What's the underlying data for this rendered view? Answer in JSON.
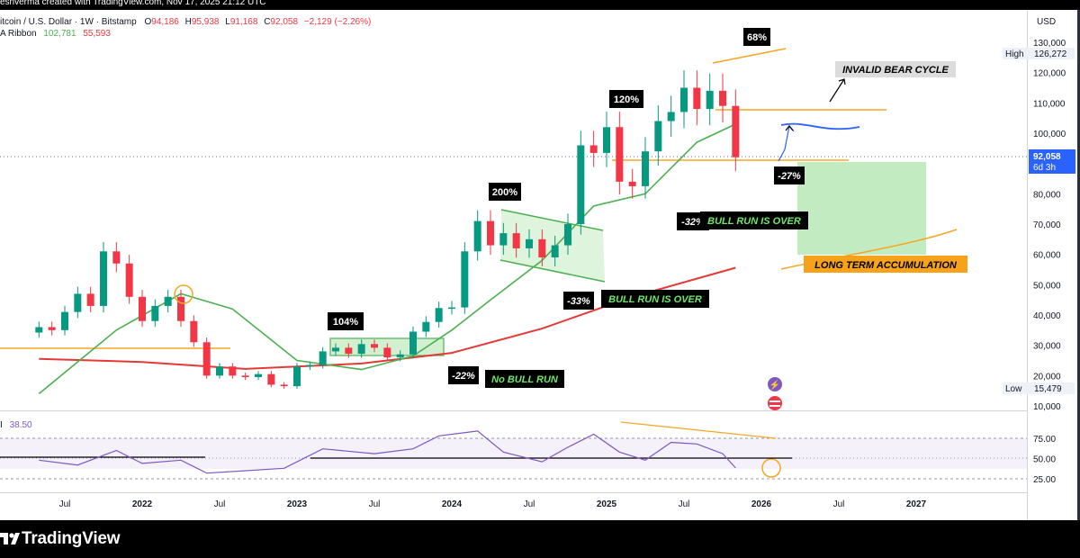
{
  "window": {
    "top_text": "esnverma created with TradingView.com, Nov 17, 2025 21:12 UTC"
  },
  "legend": {
    "symbol": "itcoin / U.S. Dollar · 1W · Bitstamp",
    "o_label": "O",
    "open": "94,186",
    "h_label": "H",
    "high": "95,938",
    "l_label": "L",
    "low": "91,168",
    "c_label": "C",
    "close": "92,058",
    "change": "−2,129 (−2.26%)",
    "ribbon_label": "A Ribbon",
    "ribbon_v1": "102,781",
    "ribbon_v2": "55,593",
    "rsi_label": "I",
    "rsi_value": "38.50"
  },
  "footer": {
    "brand": "TradingView"
  },
  "colors": {
    "up": "#26a69a",
    "up_dark": "#089981",
    "down": "#f23645",
    "sma_green": "#4caf50",
    "ema_red": "#e53935",
    "orange": "#f5a623",
    "blue": "#2962ff",
    "rsi": "#7e57c2",
    "box_green": "#b9e8b6"
  },
  "chart_data": [
    {
      "type": "line",
      "title": "",
      "currency": "USD",
      "x_ticks": [
        "Jul",
        "2022",
        "Jul",
        "2023",
        "Jul",
        "2024",
        "Jul",
        "2025",
        "Jul",
        "2026",
        "Jul",
        "2027"
      ],
      "y_ticks": [
        "130,000",
        "120,000",
        "110,000",
        "100,000",
        "90,000",
        "80,000",
        "70,000",
        "60,000",
        "50,000",
        "40,000",
        "30,000",
        "20,000",
        "10,000"
      ],
      "ylim": [
        10000,
        130000
      ],
      "price_labels": {
        "high_label": "High",
        "high_value": "126,272",
        "current_value": "92,058",
        "current_countdown": "6d 3h",
        "low_label": "Low",
        "low_value": "15,479"
      },
      "series": [
        {
          "name": "",
          "kind": "candlestick",
          "x": [
            "2021-05",
            "2021-06",
            "2021-07",
            "2021-08",
            "2021-09",
            "2021-10",
            "2021-11",
            "2021-12",
            "2022-01",
            "2022-02",
            "2022-03",
            "2022-04",
            "2022-05",
            "2022-06",
            "2022-07",
            "2022-08",
            "2022-09",
            "2022-10",
            "2022-11",
            "2022-12",
            "2023-01",
            "2023-02",
            "2023-03",
            "2023-04",
            "2023-05",
            "2023-06",
            "2023-07",
            "2023-08",
            "2023-09",
            "2023-10",
            "2023-11",
            "2023-12",
            "2024-01",
            "2024-02",
            "2024-03",
            "2024-04",
            "2024-05",
            "2024-06",
            "2024-07",
            "2024-08",
            "2024-09",
            "2024-10",
            "2024-11",
            "2024-12",
            "2025-01",
            "2025-02",
            "2025-03",
            "2025-04",
            "2025-05",
            "2025-06",
            "2025-07",
            "2025-08",
            "2025-09",
            "2025-10",
            "2025-11"
          ],
          "y": [
            36000,
            35000,
            41000,
            47000,
            43000,
            61000,
            57000,
            46000,
            38000,
            43000,
            46000,
            38000,
            31000,
            20000,
            23000,
            20000,
            19500,
            20500,
            17000,
            16500,
            23000,
            23500,
            28000,
            29200,
            27200,
            30400,
            29200,
            26000,
            27000,
            34500,
            37700,
            42300,
            42500,
            61000,
            71000,
            63000,
            67000,
            62000,
            65000,
            59000,
            63000,
            70000,
            96000,
            93500,
            102000,
            84000,
            82500,
            94000,
            104000,
            107000,
            115000,
            108000,
            114000,
            109000,
            92058
          ]
        },
        {
          "name": "",
          "kind": "sma",
          "x": [
            "2021-05",
            "2021-11",
            "2022-04",
            "2022-08",
            "2023-01",
            "2023-06",
            "2023-10",
            "2024-01",
            "2024-04",
            "2024-08",
            "2024-12",
            "2025-04",
            "2025-08",
            "2025-11"
          ],
          "y": [
            14000,
            35000,
            47000,
            42000,
            25000,
            22000,
            26500,
            35000,
            45000,
            58000,
            76000,
            80000,
            97000,
            103000
          ]
        },
        {
          "name": "",
          "kind": "ema",
          "x": [
            "2021-05",
            "2022-01",
            "2022-09",
            "2023-06",
            "2024-01",
            "2024-08",
            "2025-03",
            "2025-11"
          ],
          "y": [
            25500,
            24500,
            22200,
            24000,
            27500,
            35500,
            46000,
            55600
          ]
        }
      ],
      "annotations": [
        {
          "text": "104%",
          "style": "black-box"
        },
        {
          "text": "-22%",
          "style": "black-box"
        },
        {
          "text": "No BULL RUN",
          "style": "black-box-green"
        },
        {
          "text": "200%",
          "style": "black-box"
        },
        {
          "text": "-33%",
          "style": "black-box"
        },
        {
          "text": "BULL RUN IS OVER",
          "style": "black-box-green"
        },
        {
          "text": "120%",
          "style": "black-box"
        },
        {
          "text": "-32%",
          "style": "black-box"
        },
        {
          "text": "BULL RUN IS OVER",
          "style": "black-box-green"
        },
        {
          "text": "68%",
          "style": "black-box"
        },
        {
          "text": "-27%",
          "style": "black-box"
        },
        {
          "text": "INVALID BEAR CYCLE",
          "style": "grey-box"
        },
        {
          "text": "LONG TERM ACCUMULATION",
          "style": "orange-box"
        }
      ]
    },
    {
      "type": "line",
      "title": "",
      "y_ticks": [
        "75.00",
        "50.00",
        "25.00"
      ],
      "ylim": [
        20,
        90
      ],
      "series": [
        {
          "name": "",
          "x": [
            "2021-05",
            "2021-08",
            "2021-11",
            "2022-01",
            "2022-04",
            "2022-06",
            "2022-09",
            "2022-12",
            "2023-03",
            "2023-07",
            "2023-10",
            "2023-12",
            "2024-03",
            "2024-05",
            "2024-08",
            "2024-10",
            "2024-12",
            "2025-02",
            "2025-04",
            "2025-06",
            "2025-08",
            "2025-10",
            "2025-11"
          ],
          "y": [
            48,
            42,
            60,
            44,
            48,
            32,
            35,
            38,
            62,
            56,
            62,
            78,
            84,
            58,
            46,
            64,
            80,
            58,
            48,
            70,
            68,
            56,
            38.5
          ]
        }
      ]
    }
  ]
}
